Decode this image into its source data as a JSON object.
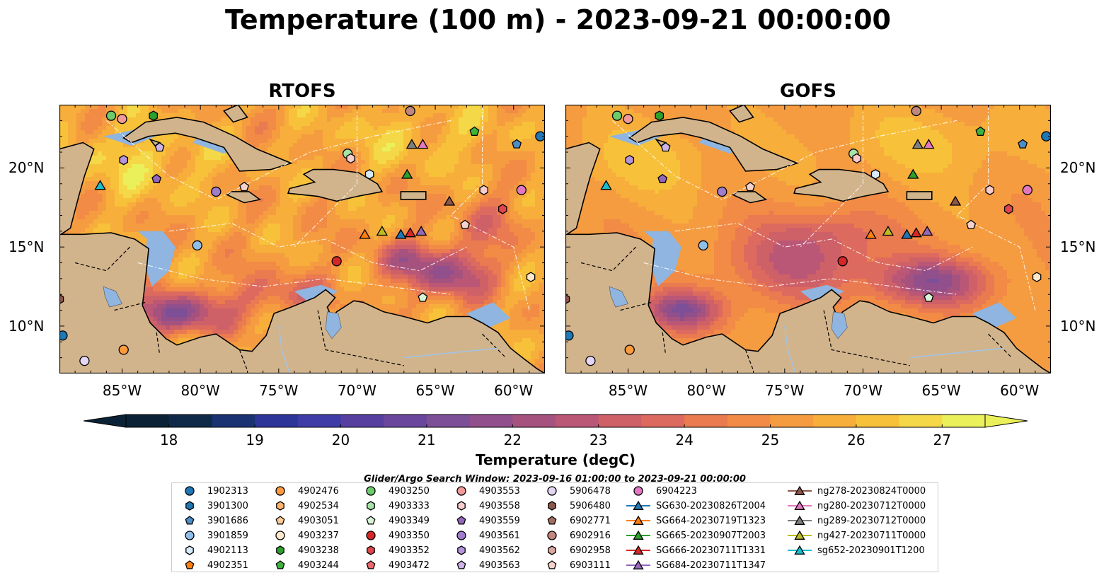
{
  "title": "Temperature (100 m) - 2023-09-21 00:00:00",
  "panels": [
    {
      "name": "rtofs",
      "title": "RTOFS"
    },
    {
      "name": "gofs",
      "title": "GOFS"
    }
  ],
  "axes": {
    "lon_ticks": [
      "85°W",
      "80°W",
      "75°W",
      "70°W",
      "65°W",
      "60°W"
    ],
    "lat_ticks": [
      "20°N",
      "15°N",
      "10°N"
    ],
    "lon_range": [
      -89,
      -58
    ],
    "lat_range": [
      7,
      24
    ]
  },
  "colorbar": {
    "label": "Temperature (degC)",
    "ticks": [
      "18",
      "19",
      "20",
      "21",
      "22",
      "23",
      "24",
      "25",
      "26",
      "27"
    ],
    "range": [
      17.5,
      27.5
    ],
    "extend": "both",
    "colors": [
      "#0b2236",
      "#0f2a48",
      "#1b3272",
      "#2e3599",
      "#3f3ca8",
      "#563f9f",
      "#6a479d",
      "#7d4f96",
      "#914f8c",
      "#a6527f",
      "#bb5776",
      "#ce6068",
      "#dd6a5e",
      "#ea7a50",
      "#f28b45",
      "#f59c40",
      "#f7ae3b",
      "#f7c23a",
      "#f5d847",
      "#eaf05a"
    ]
  },
  "search_window": "Glider/Argo Search Window: 2023-09-16 01:00:00 to 2023-09-21 00:00:00",
  "legend": {
    "columns": [
      [
        {
          "label": "1902313",
          "marker": "circle",
          "color": "#1f77b4"
        },
        {
          "label": "3901300",
          "marker": "hexagon",
          "color": "#1f77b4"
        },
        {
          "label": "3901686",
          "marker": "pentagon",
          "color": "#4c8dc6"
        },
        {
          "label": "3901859",
          "marker": "circle",
          "color": "#8fbfe8"
        },
        {
          "label": "4902113",
          "marker": "hexagon",
          "color": "#d6ebfa"
        },
        {
          "label": "4902351",
          "marker": "pentagon",
          "color": "#ff7f0e"
        }
      ],
      [
        {
          "label": "4902476",
          "marker": "circle",
          "color": "#ff9a3c"
        },
        {
          "label": "4902534",
          "marker": "hexagon",
          "color": "#ffb36b"
        },
        {
          "label": "4903051",
          "marker": "pentagon",
          "color": "#ffcc99"
        },
        {
          "label": "4903237",
          "marker": "circle",
          "color": "#ffe8cc"
        },
        {
          "label": "4903238",
          "marker": "hexagon",
          "color": "#2ca02c"
        },
        {
          "label": "4903244",
          "marker": "pentagon",
          "color": "#3cb43c"
        }
      ],
      [
        {
          "label": "4903250",
          "marker": "circle",
          "color": "#6ccc6c"
        },
        {
          "label": "4903333",
          "marker": "hexagon",
          "color": "#a6e3a6"
        },
        {
          "label": "4903349",
          "marker": "pentagon",
          "color": "#d9f5d9"
        },
        {
          "label": "4903350",
          "marker": "circle",
          "color": "#d62728"
        },
        {
          "label": "4903352",
          "marker": "hexagon",
          "color": "#e0454a"
        },
        {
          "label": "4903472",
          "marker": "pentagon",
          "color": "#ec6a6f"
        }
      ],
      [
        {
          "label": "4903553",
          "marker": "circle",
          "color": "#f29a9a"
        },
        {
          "label": "4903558",
          "marker": "hexagon",
          "color": "#f9cccc"
        },
        {
          "label": "4903559",
          "marker": "pentagon",
          "color": "#9467bd"
        },
        {
          "label": "4903561",
          "marker": "circle",
          "color": "#a07ccc"
        },
        {
          "label": "4903562",
          "marker": "hexagon",
          "color": "#b595db"
        },
        {
          "label": "4903563",
          "marker": "pentagon",
          "color": "#cdb3e8"
        }
      ],
      [
        {
          "label": "5906478",
          "marker": "circle",
          "color": "#e6d6f5"
        },
        {
          "label": "5906480",
          "marker": "hexagon",
          "color": "#8c564b"
        },
        {
          "label": "6902771",
          "marker": "pentagon",
          "color": "#a36d62"
        },
        {
          "label": "6902916",
          "marker": "circle",
          "color": "#c0877d"
        },
        {
          "label": "6902958",
          "marker": "hexagon",
          "color": "#dba89f"
        },
        {
          "label": "6903111",
          "marker": "pentagon",
          "color": "#f5d3cc"
        }
      ],
      [
        {
          "label": "6904223",
          "marker": "circle",
          "color": "#e377c2"
        },
        {
          "label": "SG630-20230826T2004",
          "marker": "triangle",
          "color": "#1f77b4"
        },
        {
          "label": "SG664-20230719T1323",
          "marker": "triangle",
          "color": "#ff7f0e"
        },
        {
          "label": "SG665-20230907T2003",
          "marker": "triangle",
          "color": "#2ca02c"
        },
        {
          "label": "SG666-20230711T1331",
          "marker": "triangle",
          "color": "#d62728"
        },
        {
          "label": "SG684-20230711T1347",
          "marker": "triangle",
          "color": "#9467bd"
        }
      ],
      [
        {
          "label": "ng278-20230824T0000",
          "marker": "triangle",
          "color": "#8c564b"
        },
        {
          "label": "ng280-20230712T0000",
          "marker": "triangle",
          "color": "#e377c2"
        },
        {
          "label": "ng289-20230712T0000",
          "marker": "triangle",
          "color": "#7f7f7f"
        },
        {
          "label": "ng427-20230711T0000",
          "marker": "triangle",
          "color": "#bcbd22"
        },
        {
          "label": "sg652-20230901T1200",
          "marker": "triangle",
          "color": "#17becf"
        }
      ]
    ]
  },
  "observations": [
    {
      "lon": -58.3,
      "lat": 22.0,
      "marker": "circle",
      "color": "#1f77b4"
    },
    {
      "lon": -59.8,
      "lat": 21.5,
      "marker": "pentagon",
      "color": "#4c8dc6"
    },
    {
      "lon": -80.2,
      "lat": 15.1,
      "marker": "circle",
      "color": "#8fbfe8"
    },
    {
      "lon": -69.2,
      "lat": 19.6,
      "marker": "hexagon",
      "color": "#d6ebfa"
    },
    {
      "lon": -88.8,
      "lat": 9.4,
      "marker": "circle",
      "color": "#1f77b4"
    },
    {
      "lon": -84.9,
      "lat": 8.5,
      "marker": "circle",
      "color": "#ff9a3c"
    },
    {
      "lon": -87.4,
      "lat": 7.8,
      "marker": "circle",
      "color": "#e6d6f5"
    },
    {
      "lon": -85.7,
      "lat": 23.3,
      "marker": "circle",
      "color": "#6ccc6c"
    },
    {
      "lon": -85.0,
      "lat": 23.1,
      "marker": "circle",
      "color": "#f29a9a"
    },
    {
      "lon": -83.0,
      "lat": 23.3,
      "marker": "hexagon",
      "color": "#2ca02c"
    },
    {
      "lon": -62.5,
      "lat": 22.3,
      "marker": "pentagon",
      "color": "#3cb43c"
    },
    {
      "lon": -70.6,
      "lat": 20.9,
      "marker": "circle",
      "color": "#a6e3a6"
    },
    {
      "lon": -70.4,
      "lat": 20.6,
      "marker": "hexagon",
      "color": "#f9cccc"
    },
    {
      "lon": -84.9,
      "lat": 20.5,
      "marker": "hexagon",
      "color": "#b595db"
    },
    {
      "lon": -82.6,
      "lat": 21.3,
      "marker": "pentagon",
      "color": "#cdb3e8"
    },
    {
      "lon": -82.8,
      "lat": 19.3,
      "marker": "pentagon",
      "color": "#9467bd"
    },
    {
      "lon": -79.0,
      "lat": 18.5,
      "marker": "circle",
      "color": "#a07ccc"
    },
    {
      "lon": -77.2,
      "lat": 18.8,
      "marker": "pentagon",
      "color": "#f5d3cc"
    },
    {
      "lon": -59.5,
      "lat": 18.6,
      "marker": "circle",
      "color": "#e377c2"
    },
    {
      "lon": -61.9,
      "lat": 18.6,
      "marker": "hexagon",
      "color": "#f9cccc"
    },
    {
      "lon": -60.7,
      "lat": 17.4,
      "marker": "hexagon",
      "color": "#e0454a"
    },
    {
      "lon": -63.1,
      "lat": 16.4,
      "marker": "pentagon",
      "color": "#f5d3cc"
    },
    {
      "lon": -71.3,
      "lat": 14.1,
      "marker": "circle",
      "color": "#d62728"
    },
    {
      "lon": -65.8,
      "lat": 11.8,
      "marker": "pentagon",
      "color": "#d9f5d9"
    },
    {
      "lon": -58.9,
      "lat": 13.1,
      "marker": "hexagon",
      "color": "#ffe8cc"
    },
    {
      "lon": -89.0,
      "lat": 11.7,
      "marker": "hexagon",
      "color": "#8c564b"
    },
    {
      "lon": -66.6,
      "lat": 23.6,
      "marker": "circle",
      "color": "#c0877d"
    },
    {
      "lon": -86.4,
      "lat": 18.9,
      "marker": "triangle",
      "color": "#17becf"
    },
    {
      "lon": -66.8,
      "lat": 19.6,
      "marker": "triangle",
      "color": "#2ca02c"
    },
    {
      "lon": -66.5,
      "lat": 21.5,
      "marker": "triangle",
      "color": "#7f7f7f"
    },
    {
      "lon": -65.8,
      "lat": 21.5,
      "marker": "triangle",
      "color": "#e377c2"
    },
    {
      "lon": -64.1,
      "lat": 17.9,
      "marker": "triangle",
      "color": "#8c564b"
    },
    {
      "lon": -69.5,
      "lat": 15.8,
      "marker": "triangle",
      "color": "#ff7f0e"
    },
    {
      "lon": -68.4,
      "lat": 16.0,
      "marker": "triangle",
      "color": "#bcbd22"
    },
    {
      "lon": -67.2,
      "lat": 15.8,
      "marker": "triangle",
      "color": "#1f77b4"
    },
    {
      "lon": -66.6,
      "lat": 15.9,
      "marker": "triangle",
      "color": "#d62728"
    },
    {
      "lon": -65.9,
      "lat": 16.0,
      "marker": "triangle",
      "color": "#9467bd"
    }
  ]
}
